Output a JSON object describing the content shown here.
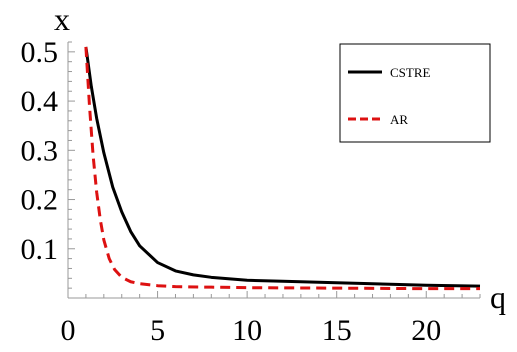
{
  "chart_data": {
    "type": "line",
    "title": "",
    "xlabel": "q",
    "ylabel": "x",
    "xlim": [
      0,
      23
    ],
    "ylim": [
      0,
      0.52
    ],
    "x_ticks": [
      0,
      5,
      10,
      15,
      20
    ],
    "x_tick_labels": [
      "0",
      "5",
      "10",
      "15",
      "20"
    ],
    "y_ticks": [
      0.1,
      0.2,
      0.3,
      0.4,
      0.5
    ],
    "y_tick_labels": [
      "0.1",
      "0.2",
      "0.3",
      "0.4",
      "0.5"
    ],
    "grid": false,
    "legend_position": "top-right",
    "series": [
      {
        "name": "CSTRE",
        "color": "#000000",
        "style": "solid",
        "x": [
          1.0,
          1.3,
          1.6,
          2.0,
          2.5,
          3.0,
          3.5,
          4.0,
          5.0,
          6.0,
          7.0,
          8.0,
          10.0,
          12.0,
          15.0,
          18.0,
          20.0,
          23.0
        ],
        "y": [
          0.51,
          0.43,
          0.365,
          0.295,
          0.225,
          0.175,
          0.135,
          0.106,
          0.072,
          0.055,
          0.047,
          0.042,
          0.036,
          0.034,
          0.031,
          0.028,
          0.026,
          0.024
        ]
      },
      {
        "name": "AR",
        "color": "#dd1111",
        "style": "dashed",
        "x": [
          1.0,
          1.2,
          1.4,
          1.6,
          1.8,
          2.0,
          2.3,
          2.6,
          3.0,
          3.5,
          4.0,
          5.0,
          6.0,
          8.0,
          10.0,
          15.0,
          20.0,
          23.0
        ],
        "y": [
          0.51,
          0.39,
          0.29,
          0.215,
          0.16,
          0.118,
          0.08,
          0.058,
          0.042,
          0.033,
          0.029,
          0.025,
          0.023,
          0.022,
          0.021,
          0.02,
          0.019,
          0.019
        ]
      }
    ]
  }
}
